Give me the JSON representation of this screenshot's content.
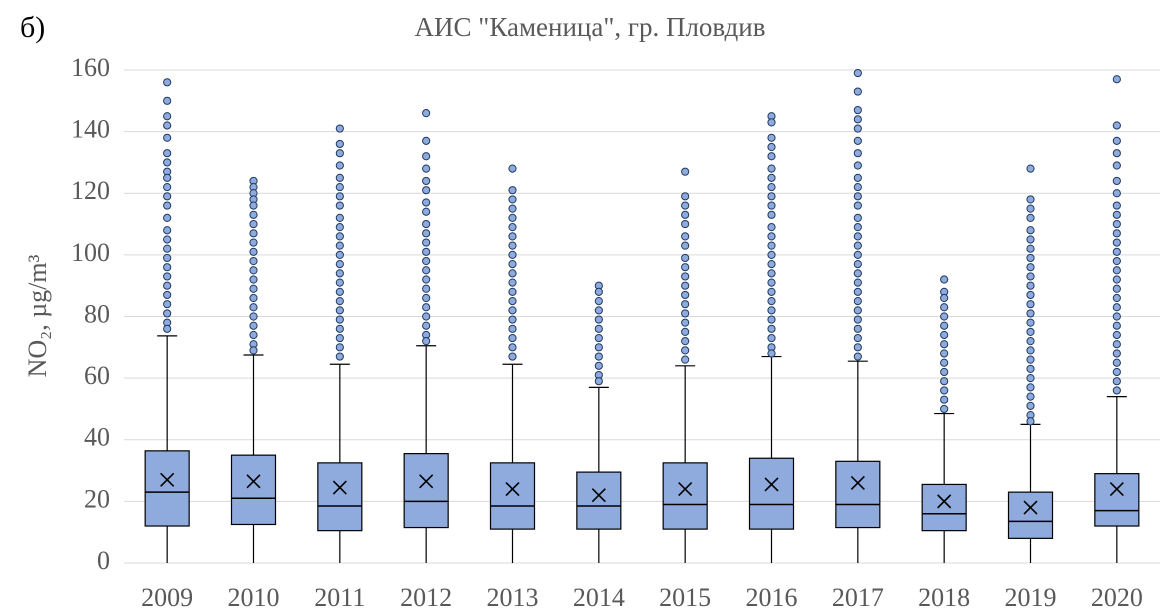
{
  "chart_data": {
    "type": "box",
    "panel_label": "б)",
    "title": "АИС \"Каменица\", гр. Пловдив",
    "y_label": "NO₂, µg/m³",
    "color": "#8faadc",
    "categories": [
      "2009",
      "2010",
      "2011",
      "2012",
      "2013",
      "2014",
      "2015",
      "2016",
      "2017",
      "2018",
      "2019",
      "2020"
    ],
    "min": [
      0,
      0,
      0,
      0,
      0,
      0,
      0,
      0,
      0,
      0,
      0,
      0
    ],
    "q1": [
      12,
      12.5,
      10.5,
      11.5,
      11,
      11,
      11,
      11,
      11.5,
      10.5,
      8,
      12
    ],
    "median": [
      23,
      21,
      18.5,
      20,
      18.5,
      18.5,
      19,
      19,
      19,
      16,
      13.5,
      17
    ],
    "q3": [
      36.4,
      35,
      32.5,
      35.5,
      32.5,
      29.5,
      32.5,
      34,
      33,
      25.5,
      23,
      29
    ],
    "max": [
      73.7,
      67.5,
      64.5,
      70.5,
      64.5,
      57,
      64,
      67,
      65.5,
      48.5,
      45,
      54
    ],
    "mean": [
      27,
      26.5,
      24.5,
      26.5,
      24,
      22,
      24,
      25.5,
      26,
      20,
      18,
      24
    ],
    "outliers": [
      [
        156,
        150,
        145,
        142,
        138,
        133,
        130,
        127,
        125,
        122,
        119,
        116,
        112,
        108,
        105,
        102,
        99,
        96,
        93,
        90,
        87,
        84,
        81,
        78,
        76
      ],
      [
        124,
        122,
        120,
        118,
        116,
        113,
        110,
        107,
        104,
        101,
        98,
        95,
        92,
        89,
        86,
        83,
        80,
        77,
        74,
        71,
        69
      ],
      [
        141,
        136,
        133,
        129,
        125,
        122,
        119,
        116,
        112,
        109,
        106,
        103,
        100,
        97,
        94,
        91,
        88,
        85,
        82,
        79,
        76,
        73,
        70,
        67
      ],
      [
        146,
        137,
        132,
        128,
        124,
        121,
        117,
        114,
        110,
        107,
        104,
        101,
        98,
        95,
        92,
        89,
        86,
        83,
        80,
        77,
        74,
        72
      ],
      [
        128,
        121,
        118,
        115,
        112,
        109,
        106,
        103,
        100,
        97,
        94,
        91,
        88,
        85,
        82,
        79,
        76,
        73,
        70,
        67
      ],
      [
        90,
        88,
        85,
        82,
        79,
        76,
        73,
        70,
        67,
        64,
        61,
        59
      ],
      [
        127,
        119,
        116,
        113,
        110,
        106,
        103,
        99,
        96,
        93,
        90,
        87,
        84,
        81,
        78,
        75,
        72,
        69,
        66
      ],
      [
        145,
        143,
        138,
        135,
        132,
        128,
        125,
        122,
        119,
        116,
        113,
        109,
        106,
        103,
        100,
        97,
        94,
        91,
        88,
        85,
        82,
        79,
        76,
        73,
        70,
        68
      ],
      [
        159,
        153,
        147,
        144,
        141,
        137,
        133,
        129,
        125,
        122,
        119,
        116,
        112,
        109,
        106,
        103,
        100,
        97,
        94,
        91,
        88,
        85,
        82,
        79,
        76,
        73,
        70,
        67
      ],
      [
        92,
        88,
        86,
        83,
        80,
        77,
        74,
        71,
        68,
        65,
        62,
        59,
        56,
        53,
        50
      ],
      [
        128,
        118,
        115,
        112,
        108,
        105,
        102,
        99,
        96,
        93,
        90,
        87,
        84,
        81,
        78,
        75,
        72,
        69,
        66,
        63,
        60,
        57,
        54,
        51,
        48,
        46
      ],
      [
        157,
        142,
        137,
        133,
        129,
        124,
        120,
        116,
        113,
        110,
        107,
        104,
        101,
        98,
        95,
        92,
        89,
        86,
        83,
        80,
        77,
        74,
        71,
        68,
        65,
        62,
        59,
        56
      ]
    ],
    "ylim": [
      0,
      160
    ],
    "yticks": [
      0,
      20,
      40,
      60,
      80,
      100,
      120,
      140,
      160
    ],
    "grid": true
  }
}
